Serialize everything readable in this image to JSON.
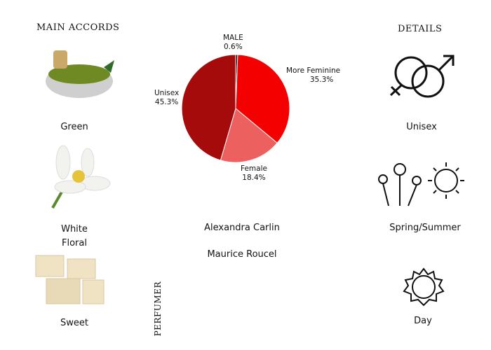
{
  "main_accords": {
    "title": "MAIN ACCORDS",
    "items": [
      {
        "label": "Green"
      },
      {
        "label": "White\nFloral"
      },
      {
        "label": "Sweet"
      }
    ]
  },
  "details": {
    "title": "DETAILS",
    "gender": "Unisex",
    "season": "Spring/Summer",
    "time": "Day"
  },
  "perfumer": {
    "title": "PERFUMER",
    "names": [
      "Alexandra Carlin",
      "Maurice Roucel"
    ]
  },
  "chart_data": {
    "type": "pie",
    "slices": [
      {
        "name": "MALE",
        "value": 0.6,
        "label": "0.6%",
        "color": "#1a0a0a"
      },
      {
        "name": "More Feminine",
        "value": 35.3,
        "label": "35.3%",
        "color": "#f50000"
      },
      {
        "name": "Female",
        "value": 18.4,
        "label": "18.4%",
        "color": "#ec6060"
      },
      {
        "name": "Unisex",
        "value": 45.3,
        "label": "45.3%",
        "color": "#a50b0b"
      }
    ]
  }
}
